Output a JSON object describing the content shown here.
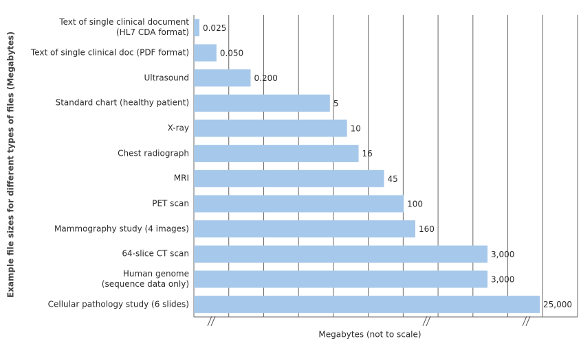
{
  "chart_data": {
    "type": "bar",
    "orientation": "horizontal",
    "y_label": "Example file sizes for different types of files (Megabytes)",
    "x_label": "Megabytes (not to scale)",
    "categories": [
      "Text of single clinical document\n(HL7 CDA format)",
      "Text of single clinical doc (PDF format)",
      "Ultrasound",
      "Standard chart (healthy patient)",
      "X-ray",
      "Chest radiograph",
      "MRI",
      "PET scan",
      "Mammography study (4 images)",
      "64-slice CT scan",
      "Human genome\n(sequence data only)",
      "Cellular pathology study (6 slides)"
    ],
    "values": [
      0.025,
      0.05,
      0.2,
      5,
      10,
      16,
      45,
      100,
      160,
      3000,
      3000,
      25000
    ],
    "value_labels": [
      "0.025",
      "0.050",
      "0.200",
      "5",
      "10",
      "16",
      "45",
      "100",
      "160",
      "3,000",
      "3,000",
      "25,000"
    ],
    "color": "#a6c8ea",
    "log_scale": true,
    "xlim": [
      0.02,
      25000
    ],
    "grid": true
  }
}
